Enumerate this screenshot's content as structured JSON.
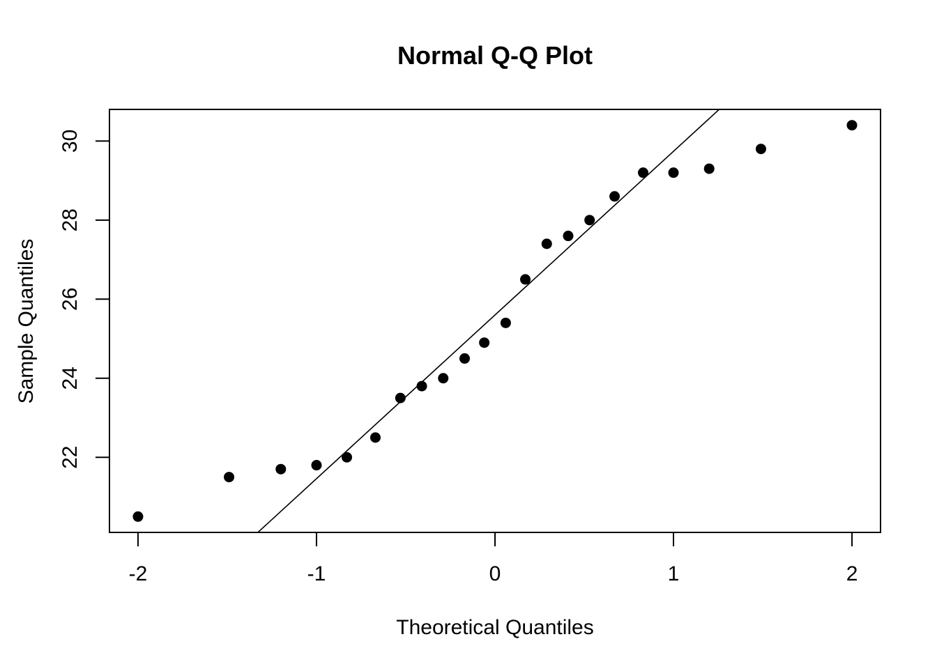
{
  "chart_data": {
    "type": "scatter",
    "title": "Normal Q-Q Plot",
    "xlabel": "Theoretical Quantiles",
    "ylabel": "Sample Quantiles",
    "xlim": [
      -2.16,
      2.16
    ],
    "ylim": [
      20.1,
      30.8
    ],
    "x_ticks": [
      -2,
      -1,
      0,
      1,
      2
    ],
    "x_tick_labels": [
      "-2",
      "-1",
      "0",
      "1",
      "2"
    ],
    "y_ticks": [
      22,
      24,
      26,
      28,
      30
    ],
    "y_tick_labels": [
      "22",
      "24",
      "26",
      "28",
      "30"
    ],
    "grid": false,
    "legend": "none",
    "series": [
      {
        "x": [
          -2.0,
          -1.49,
          -1.2,
          -1.0,
          -0.83,
          -0.67,
          -0.53,
          -0.41,
          -0.29,
          -0.17,
          -0.06,
          0.06,
          0.17,
          0.29,
          0.41,
          0.53,
          0.67,
          0.83,
          1.0,
          1.2,
          1.49,
          2.0
        ],
        "y": [
          20.5,
          21.5,
          21.7,
          21.8,
          22.0,
          22.5,
          23.5,
          23.8,
          24.0,
          24.5,
          24.9,
          25.4,
          26.5,
          27.4,
          27.6,
          28.0,
          28.6,
          29.2,
          29.2,
          29.3,
          29.8,
          30.4
        ]
      }
    ],
    "reference_line": {
      "intercept": 25.6,
      "slope": 4.14
    }
  }
}
